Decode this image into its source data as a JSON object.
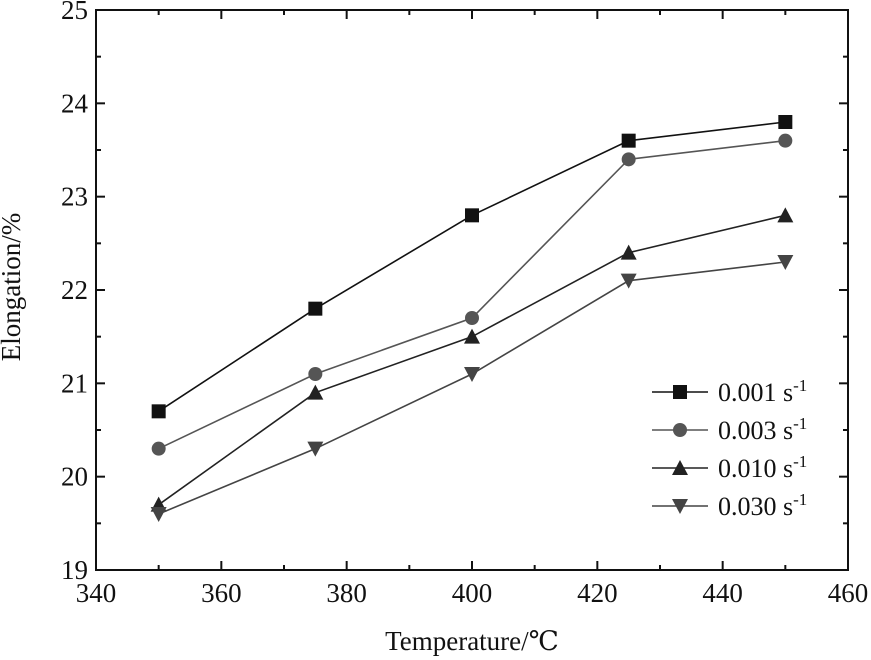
{
  "chart_data": {
    "type": "line",
    "title": "",
    "xlabel": "Temperature/℃",
    "ylabel": "Elongation/%",
    "xlim": [
      340,
      460
    ],
    "ylim": [
      19,
      25
    ],
    "x_ticks": [
      "340",
      "360",
      "380",
      "400",
      "420",
      "440",
      "460"
    ],
    "y_ticks": [
      "19",
      "20",
      "21",
      "22",
      "23",
      "24",
      "25"
    ],
    "grid": false,
    "legend_position": "bottom-right",
    "x": [
      350,
      375,
      400,
      425,
      450
    ],
    "series": [
      {
        "name": "0.001 s",
        "superscript": "-1",
        "marker": "square",
        "color": "#111111",
        "values": [
          20.7,
          21.8,
          22.8,
          23.6,
          23.8
        ]
      },
      {
        "name": "0.003 s",
        "superscript": "-1",
        "marker": "circle",
        "color": "#555555",
        "values": [
          20.3,
          21.1,
          21.7,
          23.4,
          23.6
        ]
      },
      {
        "name": "0.010 s",
        "superscript": "-1",
        "marker": "triangle-up",
        "color": "#222222",
        "values": [
          19.7,
          20.9,
          21.5,
          22.4,
          22.8
        ]
      },
      {
        "name": "0.030 s",
        "superscript": "-1",
        "marker": "triangle-down",
        "color": "#444444",
        "values": [
          19.6,
          20.3,
          21.1,
          22.1,
          22.3
        ]
      }
    ]
  }
}
